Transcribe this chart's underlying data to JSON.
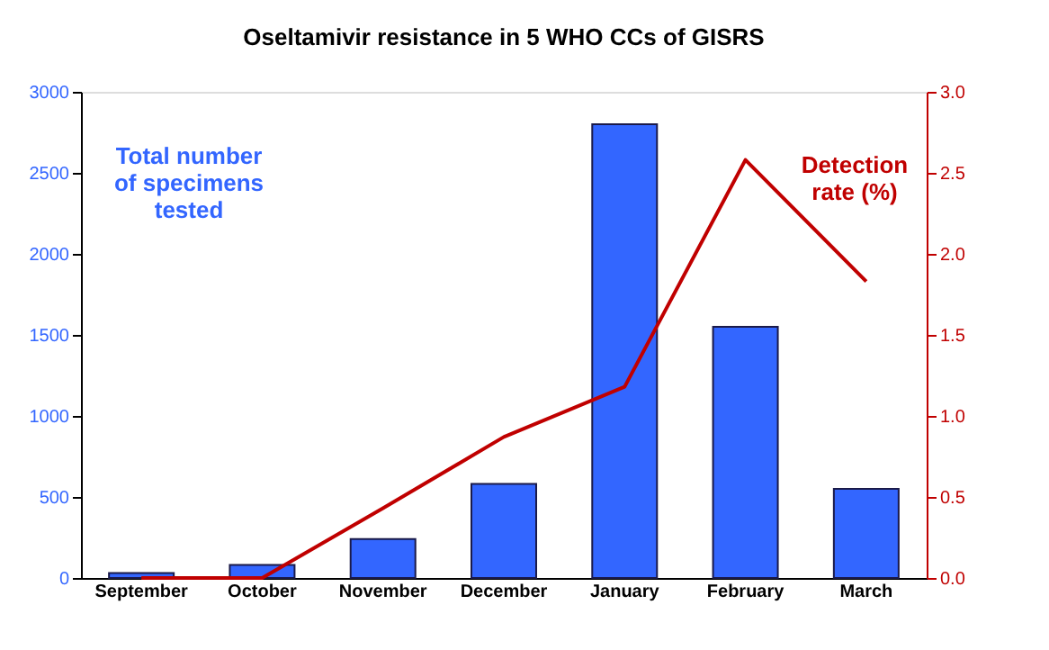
{
  "chart_data": {
    "type": "bar",
    "title": "Oseltamivir resistance in 5 WHO CCs of GISRS",
    "categories": [
      "September",
      "October",
      "November",
      "December",
      "January",
      "February",
      "March"
    ],
    "series": [
      {
        "name": "Total number\nof specimens\ntested",
        "color": "#3366ff",
        "values": [
          30,
          80,
          240,
          580,
          2800,
          1550,
          550
        ]
      },
      {
        "name": "Detection\nrate (%)",
        "type": "line",
        "axis": "y2",
        "color": "#c00000",
        "values": [
          0,
          0,
          0.43,
          0.87,
          1.18,
          2.58,
          1.83
        ]
      }
    ],
    "ylim": [
      0,
      3000
    ],
    "yticks": [
      0,
      500,
      1000,
      1500,
      2000,
      2500,
      3000
    ],
    "y2lim": [
      0,
      3.0
    ],
    "y2ticks": [
      {
        "value": 0,
        "label": "0.0"
      },
      {
        "value": 0.5,
        "label": "0.5"
      },
      {
        "value": 1,
        "label": "1.0"
      },
      {
        "value": 1.5,
        "label": "1.5"
      },
      {
        "value": 2,
        "label": "2.0"
      },
      {
        "value": 2.5,
        "label": "2.5"
      },
      {
        "value": 3,
        "label": "3.0"
      }
    ],
    "grid": false,
    "legend": false,
    "marker": "none",
    "line_style": "solid"
  }
}
